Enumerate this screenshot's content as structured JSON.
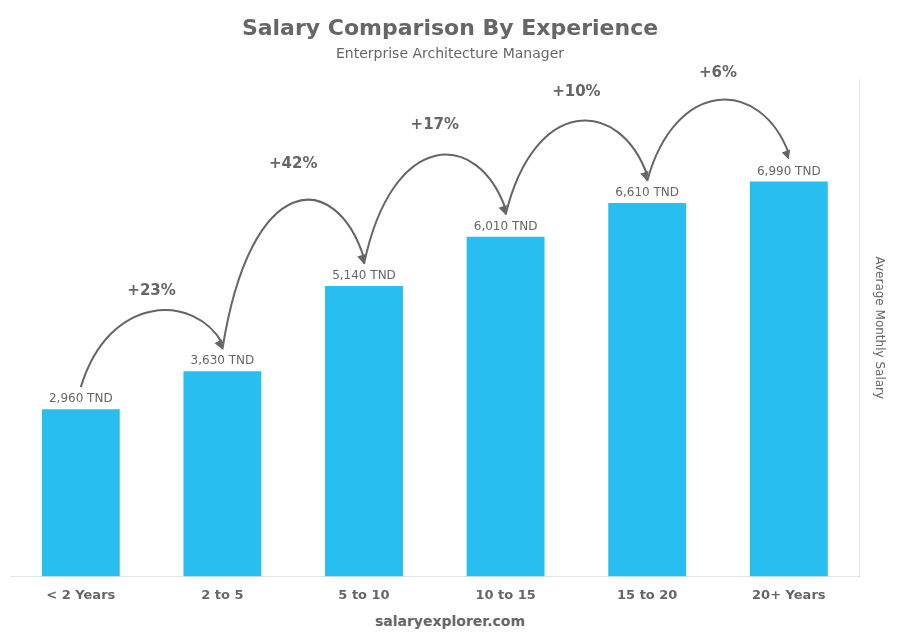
{
  "chart_data": {
    "type": "bar",
    "title": "Salary Comparison By Experience",
    "subtitle": "Enterprise Architecture Manager",
    "categories": [
      "< 2 Years",
      "2 to 5",
      "5 to 10",
      "10 to 15",
      "15 to 20",
      "20+ Years"
    ],
    "values": [
      2960,
      3630,
      5140,
      6010,
      6610,
      6990
    ],
    "value_labels": [
      "2,960 TND",
      "3,630 TND",
      "5,140 TND",
      "6,010 TND",
      "6,610 TND",
      "6,990 TND"
    ],
    "data_labels": true,
    "color": "#29bef0",
    "ylabel": "Average Monthly Salary",
    "ylim": [
      0,
      8800
    ],
    "tick_labels": "x",
    "grid": false,
    "annotations": [
      {
        "text": "+23%",
        "from": "< 2 Years",
        "to": "2 to 5"
      },
      {
        "text": "+42%",
        "from": "2 to 5",
        "to": "5 to 10"
      },
      {
        "text": "+17%",
        "from": "5 to 10",
        "to": "10 to 15"
      },
      {
        "text": "+10%",
        "from": "10 to 15",
        "to": "15 to 20"
      },
      {
        "text": "+6%",
        "from": "15 to 20",
        "to": "20+ Years"
      }
    ],
    "footer": "salaryexplorer.com"
  }
}
